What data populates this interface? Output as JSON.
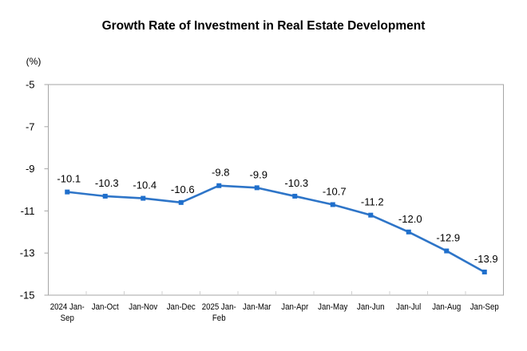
{
  "chart_data": {
    "type": "line",
    "title": "Growth Rate of Investment in Real Estate Development",
    "ylabel": "(%)",
    "xlabel": "",
    "ylim": [
      -15,
      -5
    ],
    "yticks": [
      -5,
      -7,
      -9,
      -11,
      -13,
      -15
    ],
    "grid": false,
    "categories": [
      "2024 Jan-Sep",
      "Jan-Oct",
      "Jan-Nov",
      "Jan-Dec",
      "2025 Jan-Feb",
      "Jan-Mar",
      "Jan-Apr",
      "Jan-May",
      "Jan-Jun",
      "Jan-Jul",
      "Jan-Aug",
      "Jan-Sep"
    ],
    "category_lines": [
      [
        "2024 Jan-",
        "Sep"
      ],
      [
        "Jan-Oct"
      ],
      [
        "Jan-Nov"
      ],
      [
        "Jan-Dec"
      ],
      [
        "2025 Jan-",
        "Feb"
      ],
      [
        "Jan-Mar"
      ],
      [
        "Jan-Apr"
      ],
      [
        "Jan-May"
      ],
      [
        "Jan-Jun"
      ],
      [
        "Jan-Jul"
      ],
      [
        "Jan-Aug"
      ],
      [
        "Jan-Sep"
      ]
    ],
    "values": [
      -10.1,
      -10.3,
      -10.4,
      -10.6,
      -9.8,
      -9.9,
      -10.3,
      -10.7,
      -11.2,
      -12.0,
      -12.9,
      -13.9
    ],
    "data_labels": [
      "-10.1",
      "-10.3",
      "-10.4",
      "-10.6",
      "-9.8",
      "-9.9",
      "-10.3",
      "-10.7",
      "-11.2",
      "-12.0",
      "-12.9",
      "-13.9"
    ],
    "line_color": "#2e75c8",
    "axis_color": "#a6a6a6"
  }
}
